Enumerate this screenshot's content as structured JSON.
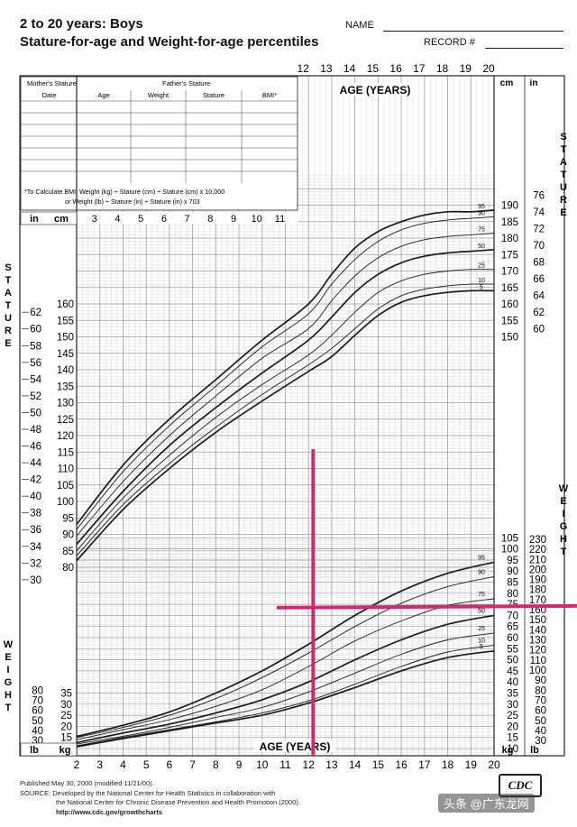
{
  "header": {
    "title": "2 to 20 years: Boys",
    "subtitle": "Stature-for-age and Weight-for-age percentiles",
    "name_label": "NAME",
    "record_label": "RECORD #"
  },
  "info_table": {
    "mother_label": "Mother's Stature",
    "father_label": "Father's Stature",
    "columns": [
      "Date",
      "Age",
      "Weight",
      "Stature",
      "BMI*"
    ],
    "bmi_note_1": "*To Calculate BMI: Weight (kg) ÷ Stature (cm) ÷ Stature (cm) x 10,000",
    "bmi_note_2": "or Weight (lb) ÷ Stature (in) ÷ Stature (in) x 703"
  },
  "footer": {
    "published": "Published May 30, 2000 (modified 11/21/00).",
    "source_1": "SOURCE: Developed by the National Center for Health Statistics in collaboration with",
    "source_2": "the National Center for Chronic Disease Prevention and Health Promotion (2000).",
    "url": "http://www.cdc.gov/growthcharts"
  },
  "logo_text": "CDC",
  "watermark": "头条 @广东龙网",
  "chart_data": {
    "type": "line",
    "title": "2 to 20 years: Boys Stature-for-age and Weight-for-age percentiles",
    "xlabel": "AGE (YEARS)",
    "x_ticks": [
      2,
      3,
      4,
      5,
      6,
      7,
      8,
      9,
      10,
      11,
      12,
      13,
      14,
      15,
      16,
      17,
      18,
      19,
      20
    ],
    "top_age_ticks": [
      12,
      13,
      14,
      15,
      16,
      17,
      18,
      19,
      20
    ],
    "inset_age_ticks": [
      3,
      4,
      5,
      6,
      7,
      8,
      9,
      10,
      11
    ],
    "xlim": [
      2,
      20
    ],
    "stature": {
      "ylabel": "STATURE",
      "unit_cm": "cm",
      "unit_in": "in",
      "ylim_cm": [
        77,
        199
      ],
      "left_cm_ticks": [
        80,
        85,
        90,
        95,
        100,
        105,
        110,
        115,
        120,
        125,
        130,
        135,
        140,
        145,
        150,
        155,
        160
      ],
      "left_in_ticks": [
        30,
        32,
        34,
        36,
        38,
        40,
        42,
        44,
        46,
        48,
        50,
        52,
        54,
        56,
        58,
        60,
        62
      ],
      "right_cm_ticks": [
        150,
        155,
        160,
        165,
        170,
        175,
        180,
        185,
        190
      ],
      "right_in_ticks": [
        60,
        62,
        64,
        66,
        68,
        70,
        72,
        74,
        76
      ],
      "ages": [
        2,
        4,
        6,
        8,
        10,
        12,
        13,
        14,
        15,
        16,
        17,
        18,
        19,
        20
      ],
      "series": [
        {
          "name": "95",
          "values": [
            93,
            111,
            125,
            137,
            149,
            160,
            169,
            177,
            182,
            185,
            187,
            188,
            188,
            188.5
          ]
        },
        {
          "name": "90",
          "values": [
            91.5,
            109,
            123,
            135,
            147,
            157,
            166,
            173.5,
            179,
            182.5,
            184.5,
            185.5,
            186,
            186.5
          ]
        },
        {
          "name": "75",
          "values": [
            89.5,
            106,
            120,
            132,
            143.5,
            152.5,
            161,
            168.5,
            174,
            177.5,
            179.5,
            180.5,
            181,
            181.5
          ]
        },
        {
          "name": "50",
          "values": [
            87,
            103,
            117,
            128.5,
            139,
            149,
            156,
            163.5,
            169,
            172.5,
            174.5,
            175.5,
            176,
            176.5
          ]
        },
        {
          "name": "25",
          "values": [
            85,
            101,
            114,
            125.5,
            135.5,
            144.5,
            150.5,
            157.5,
            163.5,
            167,
            169,
            170,
            170.5,
            170.5
          ]
        },
        {
          "name": "10",
          "values": [
            83.5,
            99,
            111.5,
            122.5,
            132.5,
            141.5,
            146.5,
            152.5,
            158.5,
            162.5,
            164.5,
            165.5,
            166,
            166
          ]
        },
        {
          "name": "5",
          "values": [
            82,
            97.5,
            110,
            121,
            130.5,
            139.5,
            144,
            150.5,
            156.5,
            160.5,
            162.5,
            163.5,
            164,
            164
          ]
        }
      ]
    },
    "weight": {
      "ylabel": "WEIGHT",
      "unit_kg": "kg",
      "unit_lb": "lb",
      "ylim_kg": [
        8,
        105
      ],
      "left_kg_ticks": [
        10,
        15,
        20,
        25,
        30,
        35
      ],
      "left_lb_ticks": [
        30,
        40,
        50,
        60,
        70,
        80
      ],
      "right_kg_ticks": [
        10,
        15,
        20,
        25,
        30,
        35,
        40,
        45,
        50,
        55,
        60,
        65,
        70,
        75,
        80,
        85,
        90,
        95,
        100,
        105
      ],
      "right_lb_ticks": [
        30,
        40,
        50,
        60,
        70,
        80,
        90,
        100,
        110,
        120,
        130,
        140,
        150,
        160,
        170,
        180,
        190,
        200,
        210,
        220,
        230
      ],
      "ages": [
        2,
        4,
        6,
        8,
        10,
        12,
        14,
        16,
        18,
        20
      ],
      "series": [
        {
          "name": "95",
          "values": [
            15.5,
            20.5,
            26.5,
            35,
            45,
            57,
            70,
            81,
            89,
            94
          ]
        },
        {
          "name": "90",
          "values": [
            15,
            19.5,
            25,
            32.5,
            42,
            53,
            65,
            75.5,
            83,
            87.5
          ]
        },
        {
          "name": "75",
          "values": [
            14,
            18.5,
            23,
            29,
            36.5,
            47,
            58.5,
            67.5,
            74.5,
            77.5
          ]
        },
        {
          "name": "50",
          "values": [
            12.7,
            17,
            21,
            26,
            32,
            40,
            50,
            59,
            66,
            70
          ]
        },
        {
          "name": "25",
          "values": [
            12,
            15.5,
            19.5,
            24,
            28.5,
            35.5,
            44,
            52.5,
            59,
            62
          ]
        },
        {
          "name": "10",
          "values": [
            11.2,
            15,
            18.5,
            22,
            26,
            31.5,
            39,
            47,
            53.5,
            56.5
          ]
        },
        {
          "name": "5",
          "values": [
            10.8,
            14.5,
            18,
            21.5,
            25,
            30.5,
            37.5,
            45,
            51,
            54
          ]
        }
      ]
    },
    "annotation": {
      "color": "#d4286e",
      "vertical_age": 12.2,
      "horizontal_weight_kg": 73.5
    },
    "colors": {
      "curve": "#1a1a1a",
      "grid": "#cfcfcf",
      "frame": "#222222"
    }
  }
}
